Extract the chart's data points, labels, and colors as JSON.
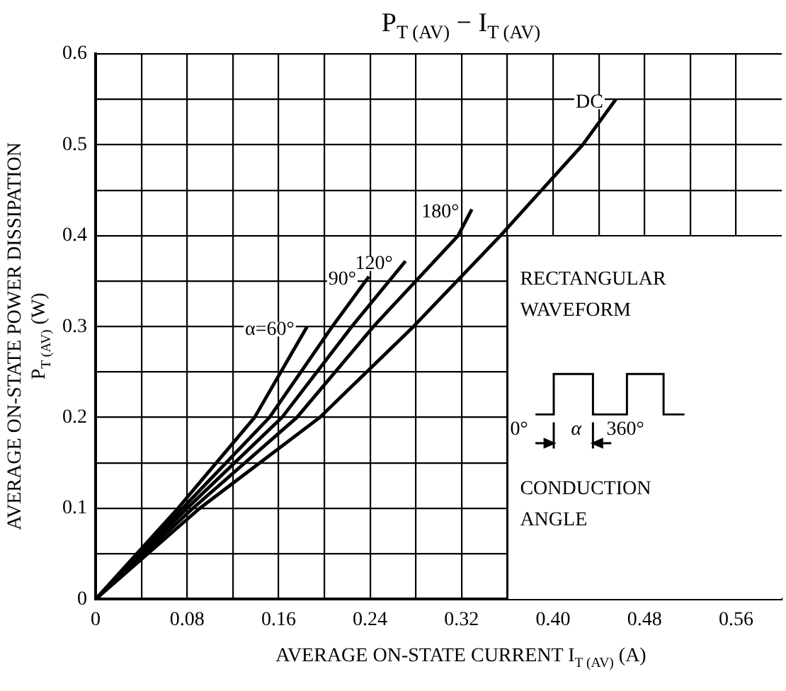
{
  "chart_data": {
    "type": "line",
    "title": "P$_{T (AV)}$  −  I$_{T (AV)}$",
    "xlabel": "AVERAGE ON-STATE CURRENT  I$_{T (AV)}$  (A)",
    "ylabel": "AVERAGE ON-STATE POWER DISSIPATION\nP$_{T (AV)}$  (W)",
    "series": [
      {
        "name": "α=60°",
        "color": "#000000",
        "x": [
          0,
          0.072,
          0.139,
          0.185
        ],
        "values": [
          0,
          0.1,
          0.2,
          0.3
        ]
      },
      {
        "name": "90°",
        "color": "#000000",
        "x": [
          0,
          0.076,
          0.152,
          0.207,
          0.239
        ],
        "values": [
          0,
          0.1,
          0.2,
          0.3,
          0.355
        ]
      },
      {
        "name": "120°",
        "color": "#000000",
        "x": [
          0,
          0.08,
          0.163,
          0.224,
          0.271
        ],
        "values": [
          0,
          0.1,
          0.2,
          0.3,
          0.372
        ]
      },
      {
        "name": "180°",
        "color": "#000000",
        "x": [
          0,
          0.085,
          0.176,
          0.243,
          0.317,
          0.329
        ],
        "values": [
          0,
          0.1,
          0.2,
          0.3,
          0.4,
          0.429
        ]
      },
      {
        "name": "DC",
        "color": "#000000",
        "x": [
          0,
          0.091,
          0.196,
          0.278,
          0.354,
          0.426,
          0.455
        ],
        "values": [
          0,
          0.1,
          0.2,
          0.3,
          0.4,
          0.5,
          0.55
        ]
      }
    ],
    "xlim": [
      0,
      0.6
    ],
    "xticks": [
      0,
      {
        "value": 0.04,
        "label": null
      },
      {
        "value": 0.08,
        "label": "0.08"
      },
      {
        "value": 0.12,
        "label": null
      },
      {
        "value": 0.16,
        "label": "0.16"
      },
      {
        "value": 0.2,
        "label": null
      },
      {
        "value": 0.24,
        "label": "0.24"
      },
      {
        "value": 0.28,
        "label": null
      },
      {
        "value": 0.32,
        "label": "0.32"
      },
      {
        "value": 0.36,
        "label": null
      },
      {
        "value": 0.4,
        "label": "0.40"
      },
      {
        "value": 0.44,
        "label": null
      },
      {
        "value": 0.48,
        "label": "0.48"
      },
      {
        "value": 0.52,
        "label": null
      },
      {
        "value": 0.56,
        "label": "0.56"
      }
    ],
    "ylim": [
      0,
      0.6
    ],
    "yticks": [
      0,
      {
        "value": 0.05,
        "label": null
      },
      0.1,
      {
        "value": 0.15,
        "label": null
      },
      0.2,
      {
        "value": 0.25,
        "label": null
      },
      0.3,
      {
        "value": 0.35,
        "label": null
      },
      0.4,
      {
        "value": 0.45,
        "label": null
      },
      0.5,
      {
        "value": 0.55,
        "label": null
      },
      0.6
    ],
    "grid": true,
    "legend": false,
    "marker": "none",
    "line_style": "solid",
    "annotations": [
      "RECTANGULAR\nWAVEFORM",
      "0°",
      "α",
      "360°",
      "CONDUCTION\nANGLE"
    ]
  }
}
